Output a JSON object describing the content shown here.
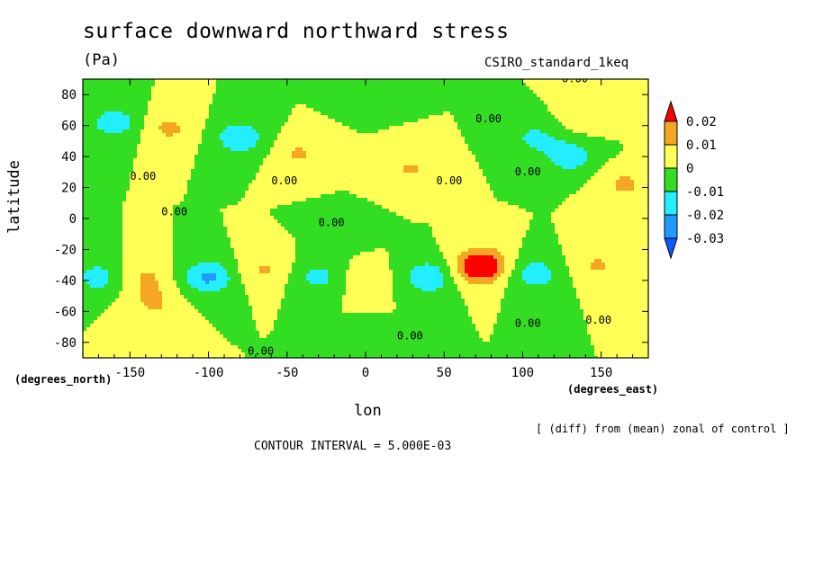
{
  "chart_data": {
    "type": "heatmap",
    "title": "surface downward northward stress",
    "units": "(Pa)",
    "model_label": "CSIRO_standard_1keq",
    "xlabel": "lon",
    "ylabel": "latitude",
    "xlabel_units": "(degrees_east)",
    "ylabel_units": "(degrees_north)",
    "note": "[ (diff) from (mean) zonal of control ]",
    "contour_interval_text": "CONTOUR INTERVAL = 5.000E-03",
    "xlim": [
      -180,
      180
    ],
    "ylim": [
      -90,
      90
    ],
    "x_ticks": [
      -150,
      -100,
      -50,
      0,
      50,
      100,
      150
    ],
    "y_ticks": [
      -80,
      -60,
      -40,
      -20,
      0,
      20,
      40,
      60,
      80
    ],
    "colorbar": {
      "labels": [
        "0.02",
        "0.01",
        "0",
        "-0.01",
        "-0.02",
        "-0.03"
      ],
      "levels": [
        0.02,
        0.01,
        0,
        -0.01,
        -0.02,
        -0.03
      ],
      "colors": [
        "#ff0000",
        "#f5a623",
        "#ffff55",
        "#33dd22",
        "#22eeff",
        "#2299ff",
        "#1155ff"
      ]
    },
    "contour_labels": [
      "0.00",
      "0.00",
      "0.00",
      "0.00",
      "0.00",
      "0.00",
      "0.00",
      "0.00",
      "0.00",
      "0.00",
      "0.00",
      "0.00"
    ],
    "features": [
      {
        "lon": 75,
        "lat": -30,
        "value": 0.022
      },
      {
        "lon": 70,
        "lat": -32,
        "value": 0.013
      },
      {
        "lon": -125,
        "lat": 58,
        "value": 0.012
      },
      {
        "lon": -135,
        "lat": -55,
        "value": 0.011
      },
      {
        "lon": -65,
        "lat": -33,
        "value": 0.011
      },
      {
        "lon": 28,
        "lat": 32,
        "value": 0.011
      },
      {
        "lon": 165,
        "lat": 22,
        "value": 0.012
      },
      {
        "lon": 148,
        "lat": -30,
        "value": 0.011
      },
      {
        "lon": -140,
        "lat": -38,
        "value": 0.011
      },
      {
        "lon": -42,
        "lat": 42,
        "value": 0.011
      },
      {
        "lon": -100,
        "lat": -38,
        "value": -0.022
      },
      {
        "lon": -80,
        "lat": 52,
        "value": -0.018
      },
      {
        "lon": -160,
        "lat": 62,
        "value": -0.016
      },
      {
        "lon": 40,
        "lat": -38,
        "value": -0.019
      },
      {
        "lon": 130,
        "lat": 40,
        "value": -0.016
      },
      {
        "lon": 108,
        "lat": -36,
        "value": -0.016
      },
      {
        "lon": -170,
        "lat": -38,
        "value": -0.014
      },
      {
        "lon": -30,
        "lat": -38,
        "value": -0.013
      },
      {
        "lon": 108,
        "lat": 52,
        "value": -0.012
      },
      {
        "lon": 0,
        "lat": -40,
        "value": 0.007
      },
      {
        "lon": 140,
        "lat": 65,
        "value": 0.006
      },
      {
        "lon": -15,
        "lat": -10,
        "value": -0.003
      },
      {
        "lon": 0,
        "lat": 80,
        "value": -0.002
      },
      {
        "lon": 0,
        "lat": -80,
        "value": -0.002
      }
    ]
  }
}
